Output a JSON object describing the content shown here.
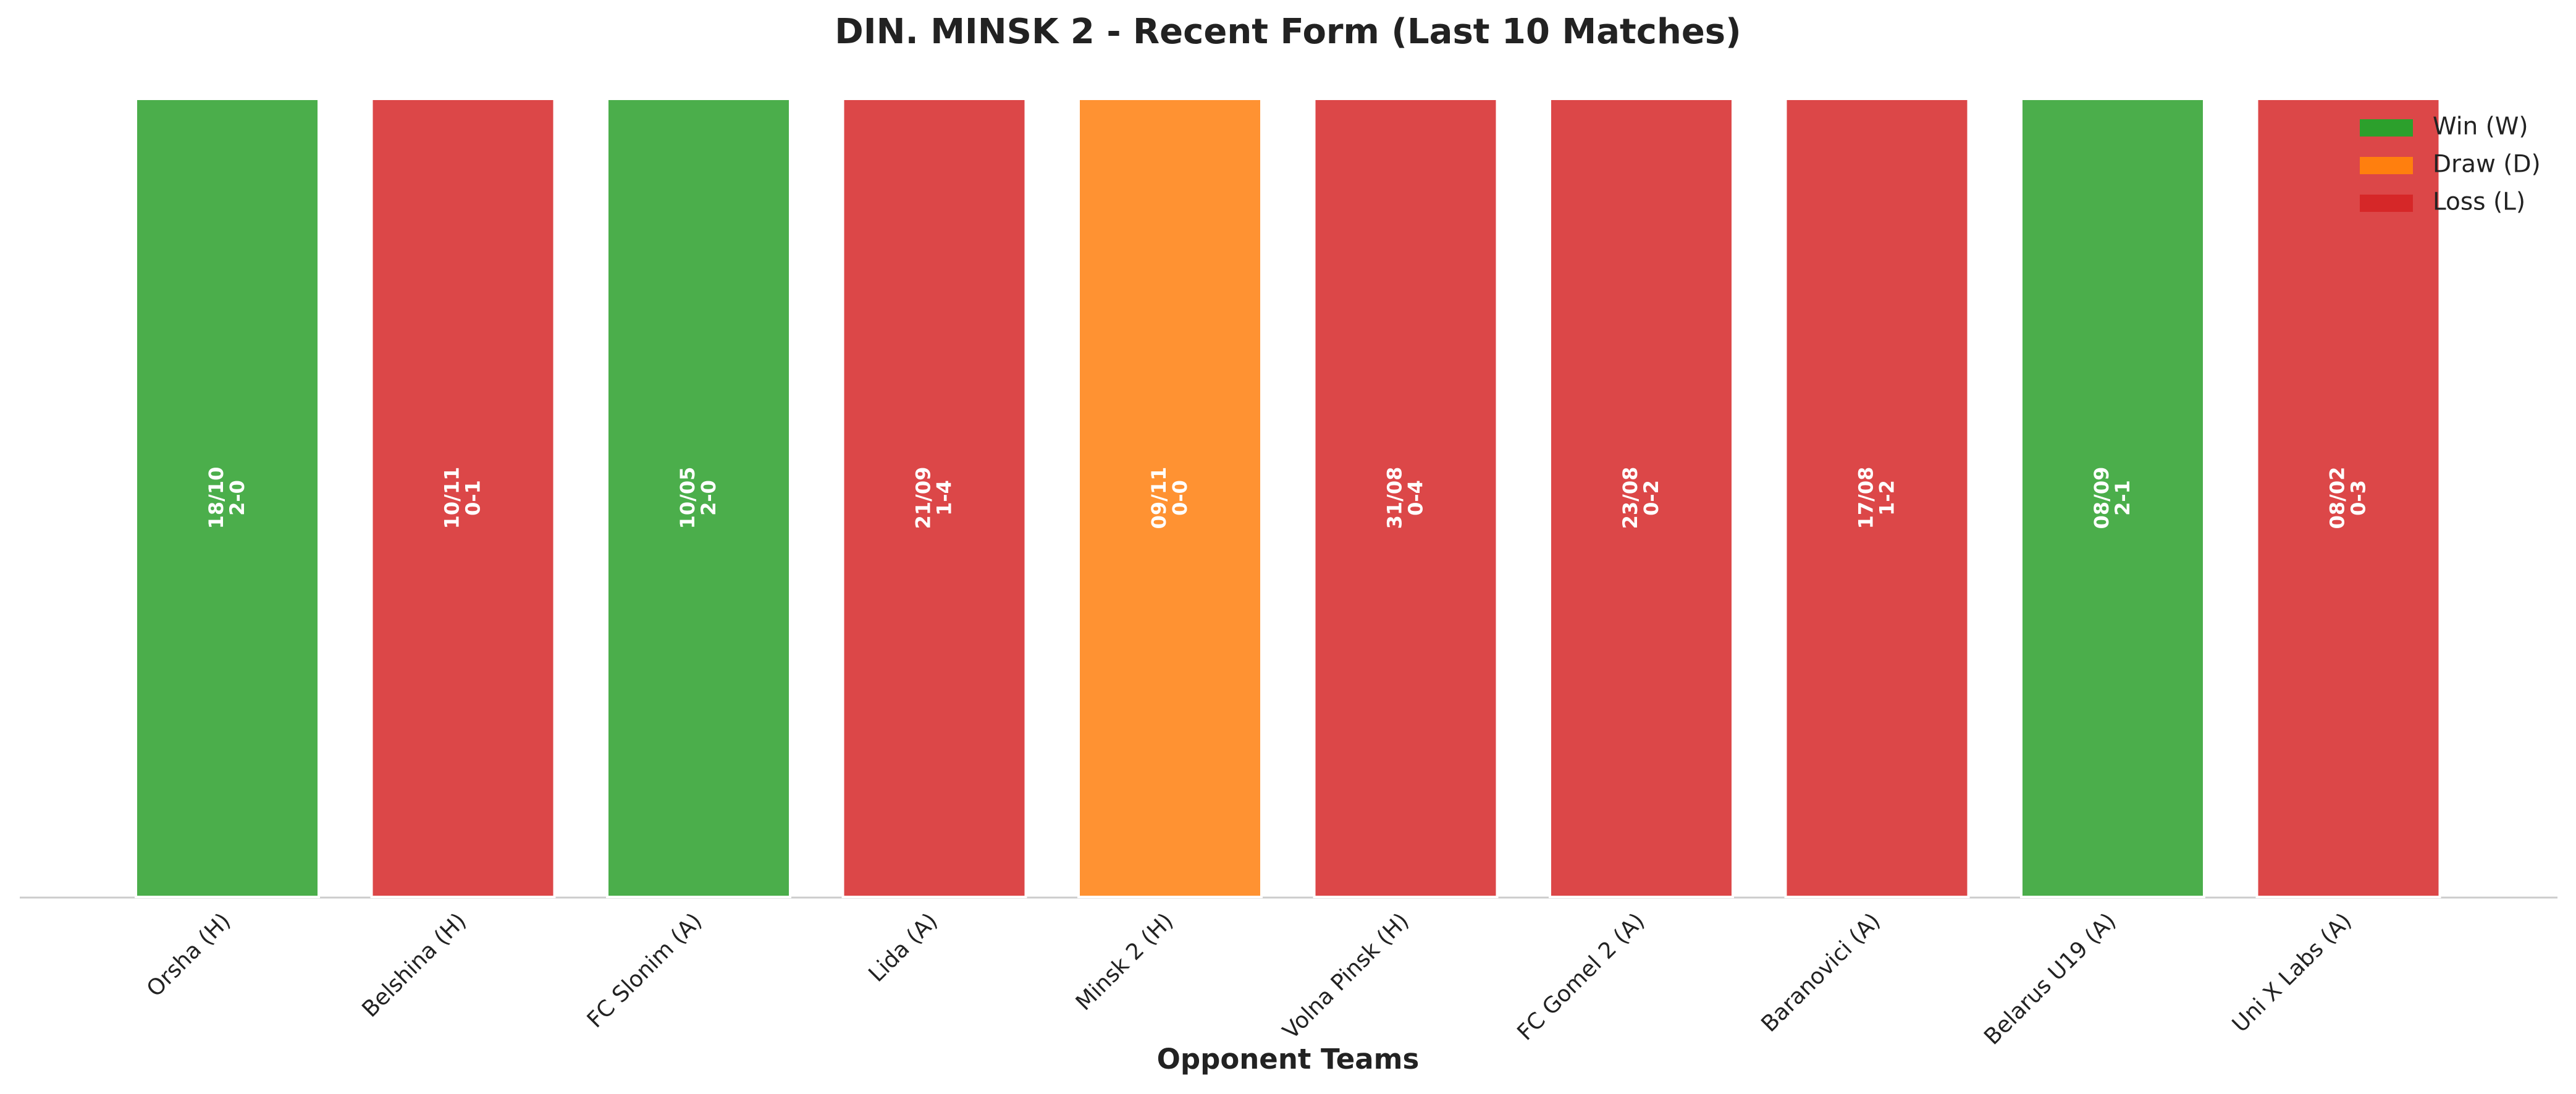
{
  "chart_data": {
    "type": "bar",
    "title": "DIN. MINSK 2 - Recent Form (Last 10 Matches)",
    "x_label": "Opponent Teams",
    "categories": [
      "Orsha (H)",
      "Belshina (H)",
      "FC Slonim (A)",
      "Lida (A)",
      "Minsk 2 (H)",
      "Volna Pinsk (H)",
      "FC Gomel 2 (A)",
      "Baranovici (A)",
      "Belarus U19 (A)",
      "Uni X Labs (A)"
    ],
    "dates": [
      "18/10",
      "10/11",
      "10/05",
      "21/09",
      "09/11",
      "31/08",
      "23/08",
      "17/08",
      "08/09",
      "08/02"
    ],
    "scores": [
      "2-0",
      "0-1",
      "2-0",
      "1-4",
      "0-0",
      "0-4",
      "0-2",
      "1-2",
      "2-1",
      "0-3"
    ],
    "series": [
      {
        "name": "Win (W)",
        "color": "#2ca02c",
        "values": [
          1,
          null,
          1,
          null,
          null,
          null,
          null,
          null,
          1,
          null
        ]
      },
      {
        "name": "Draw (D)",
        "color": "#ff7f0e",
        "values": [
          null,
          null,
          null,
          null,
          1,
          null,
          null,
          null,
          null,
          null
        ]
      },
      {
        "name": "Loss (L)",
        "color": "#d62728",
        "values": [
          null,
          1,
          null,
          1,
          null,
          1,
          1,
          1,
          null,
          1
        ]
      }
    ],
    "ylim": [
      0,
      1
    ],
    "legend": "upper right"
  }
}
